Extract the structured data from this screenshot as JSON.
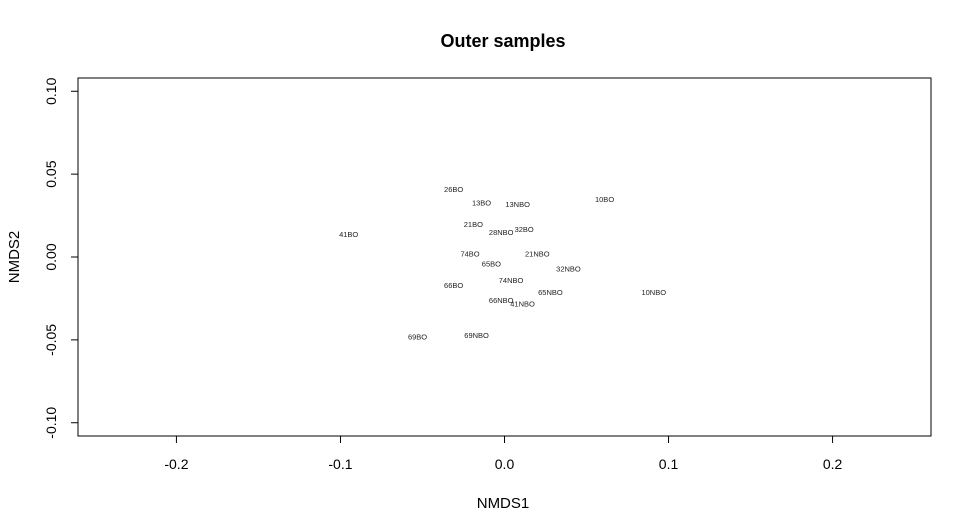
{
  "chart_data": {
    "type": "scatter",
    "title": "Outer samples",
    "xlabel": "NMDS1",
    "ylabel": "NMDS2",
    "xlim": [
      -0.26,
      0.26
    ],
    "ylim": [
      -0.108,
      0.108
    ],
    "x_ticks": [
      -0.2,
      -0.1,
      0.0,
      0.1,
      0.2
    ],
    "x_tick_labels": [
      "-0.2",
      "-0.1",
      "0.0",
      "0.1",
      "0.2"
    ],
    "y_ticks": [
      -0.1,
      -0.05,
      0.0,
      0.05,
      0.1
    ],
    "y_tick_labels": [
      "-0.10",
      "-0.05",
      "0.00",
      "0.05",
      "0.10"
    ],
    "grid": false,
    "points": [
      {
        "label": "26BO",
        "x": -0.031,
        "y": 0.041
      },
      {
        "label": "13BO",
        "x": -0.014,
        "y": 0.033
      },
      {
        "label": "13NBO",
        "x": 0.008,
        "y": 0.032
      },
      {
        "label": "10BO",
        "x": 0.061,
        "y": 0.035
      },
      {
        "label": "41BO",
        "x": -0.095,
        "y": 0.014
      },
      {
        "label": "21BO",
        "x": -0.019,
        "y": 0.02
      },
      {
        "label": "28NBO",
        "x": -0.002,
        "y": 0.015
      },
      {
        "label": "32BO",
        "x": 0.012,
        "y": 0.017
      },
      {
        "label": "74BO",
        "x": -0.021,
        "y": 0.002
      },
      {
        "label": "21NBO",
        "x": 0.02,
        "y": 0.002
      },
      {
        "label": "65BO",
        "x": -0.008,
        "y": -0.004
      },
      {
        "label": "32NBO",
        "x": 0.039,
        "y": -0.007
      },
      {
        "label": "74NBO",
        "x": 0.004,
        "y": -0.014
      },
      {
        "label": "66BO",
        "x": -0.031,
        "y": -0.017
      },
      {
        "label": "65NBO",
        "x": 0.028,
        "y": -0.021
      },
      {
        "label": "10NBO",
        "x": 0.091,
        "y": -0.021
      },
      {
        "label": "66NBO",
        "x": -0.002,
        "y": -0.026
      },
      {
        "label": "41NBO",
        "x": 0.011,
        "y": -0.028
      },
      {
        "label": "69BO",
        "x": -0.053,
        "y": -0.048
      },
      {
        "label": "69NBO",
        "x": -0.017,
        "y": -0.047
      }
    ]
  }
}
